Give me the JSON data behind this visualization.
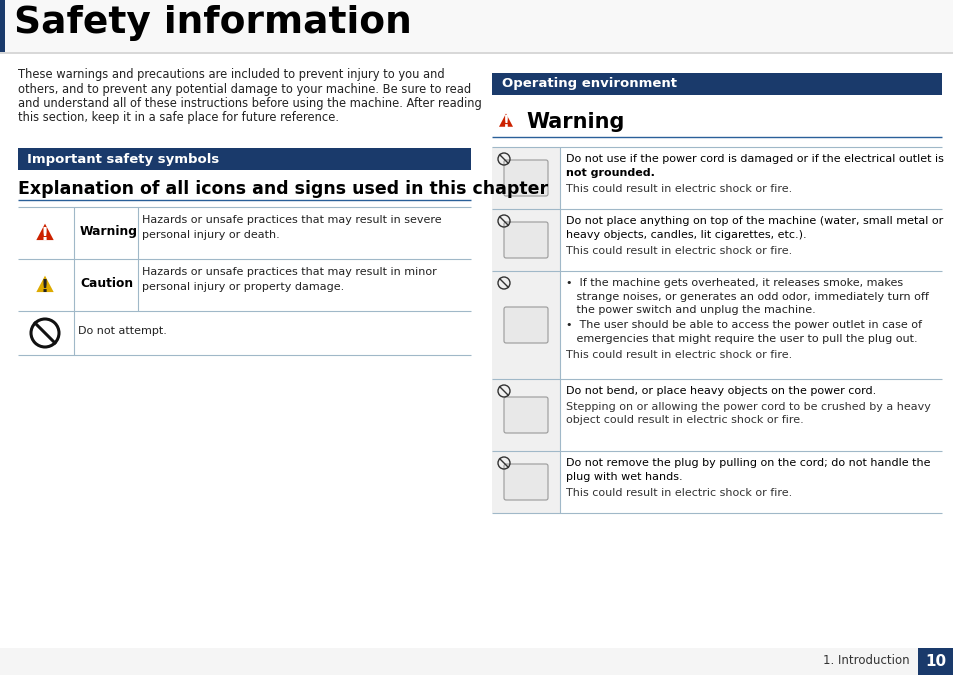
{
  "title": "Safety information",
  "bg_color": "#ffffff",
  "dark_blue": "#1a3a6b",
  "accent_blue": "#2a6099",
  "table_line_color": "#a0b8c8",
  "body_text_color": "#222222",
  "intro_lines": [
    "These warnings and precautions are included to prevent injury to you and",
    "others, and to prevent any potential damage to your machine. Be sure to read",
    "and understand all of these instructions before using the machine. After reading",
    "this section, keep it in a safe place for future reference."
  ],
  "left_section_header": "Important safety symbols",
  "left_subtitle": "Explanation of all icons and signs used in this chapter",
  "warning_label": "Warning",
  "warning_desc1": "Hazards or unsafe practices that may result in severe",
  "warning_desc2": "personal injury or death.",
  "caution_label": "Caution",
  "caution_desc1": "Hazards or unsafe practices that may result in minor",
  "caution_desc2": "personal injury or property damage.",
  "donotattempt_desc": "Do not attempt.",
  "right_section_header": "Operating environment",
  "right_warning_title": "Warning",
  "right_entries": [
    {
      "bold1": "Do not use if the power cord is damaged or if the electrical outlet is",
      "bold2": "not grounded.",
      "normal": "This could result in electric shock or fire."
    },
    {
      "bold1": "Do not place anything on top of the machine (water, small metal or",
      "bold2": "heavy objects, candles, lit cigarettes, etc.).",
      "normal": "This could result in electric shock or fire."
    },
    {
      "bullet1a": "•  If the machine gets overheated, it releases smoke, makes",
      "bullet1b": "   strange noises, or generates an odd odor, immediately turn off",
      "bullet1c": "   the power switch and unplug the machine.",
      "bullet2a": "•  The user should be able to access the power outlet in case of",
      "bullet2b": "   emergencies that might require the user to pull the plug out.",
      "normal": "This could result in electric shock or fire."
    },
    {
      "bold1": "Do not bend, or place heavy objects on the power cord.",
      "bold2": "Stepping on or allowing the power cord to be crushed by a heavy",
      "bold3": "object could result in electric shock or fire.",
      "normal": ""
    },
    {
      "bold1": "Do not remove the plug by pulling on the cord; do not handle the",
      "bold2": "plug with wet hands.",
      "normal": "This could result in electric shock or fire."
    }
  ],
  "footer_text": "1. Introduction",
  "footer_page": "10"
}
